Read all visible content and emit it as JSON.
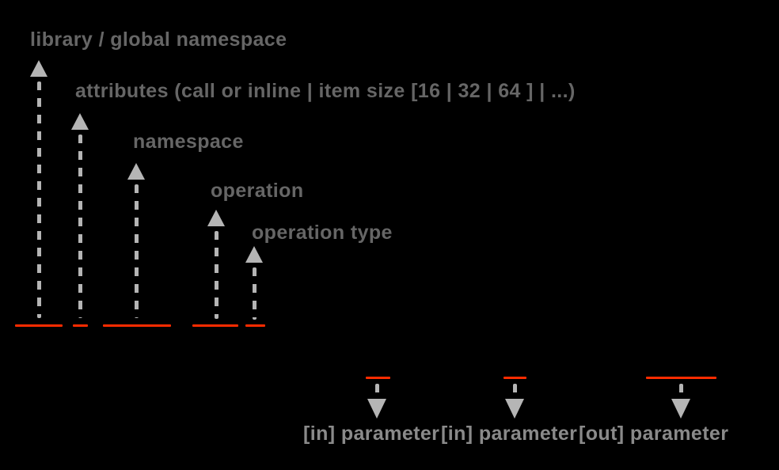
{
  "colors": {
    "background": "#000000",
    "underline_red": "#ff2c00",
    "top_label_gray": "#666666",
    "bottom_label_gray": "#8a8a8a",
    "arrow_gray": "#b5b5b5"
  },
  "top_callouts": [
    {
      "label": "library / global namespace"
    },
    {
      "label": "attributes (call or inline | item size [16 | 32 | 64 ] | ...)"
    },
    {
      "label": "namespace"
    },
    {
      "label": "operation"
    },
    {
      "label": "operation type"
    }
  ],
  "bottom_callouts": [
    {
      "label": "[in] parameter"
    },
    {
      "label": "[in] parameter"
    },
    {
      "label": "[out] parameter"
    }
  ]
}
